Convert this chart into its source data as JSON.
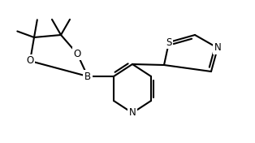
{
  "bg_color": "#ffffff",
  "line_color": "#000000",
  "line_width": 1.5,
  "font_size": 8.5,
  "figsize": [
    3.14,
    1.76
  ],
  "dpi": 100,
  "xlim": [
    0,
    314
  ],
  "ylim": [
    0,
    176
  ]
}
